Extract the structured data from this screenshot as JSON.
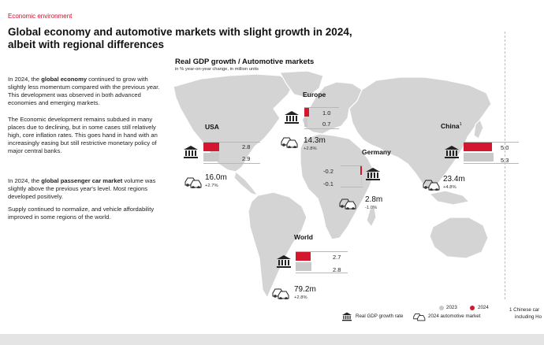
{
  "kicker": "Economic environment",
  "headline": {
    "line1": "Global economy and automotive markets with slight growth in 2024,",
    "line2": "albeit with regional differences"
  },
  "paragraphs": {
    "p1_pre": "In 2024, the ",
    "p1_bold": "global economy",
    "p1_post": " continued to grow with slightly less momentum compared with the previous year. This development was observed in both advanced economies and emerging markets.",
    "p2": "The Economic development remains subdued in many places due to declining, but in some cases still relatively high, core inflation rates. This goes hand in hand with an increasingly easing but still restrictive monetary policy of major central banks.",
    "p3_pre": "In 2024, the ",
    "p3_bold": "global passenger car market",
    "p3_post": " volume was slightly above the previous year's level. Most regions developed positively.",
    "p4": "Supply continued to normalize, and vehicle affordability improved in some regions of the world."
  },
  "map": {
    "title": "Real GDP growth / Automotive markets",
    "subtitle": "in % year-on-year change, in million units"
  },
  "regions": {
    "usa": {
      "name": "USA",
      "gdp_2024": "2.8",
      "gdp_2023": "2.9",
      "market_volume": "16.0m",
      "market_change": "+2.7%"
    },
    "europe": {
      "name": "Europe",
      "gdp_2024": "1.0",
      "gdp_2023": "0.7",
      "market_volume": "14.3m",
      "market_change": "+2.8%"
    },
    "germany": {
      "name": "Germany",
      "gdp_2024": "-0.2",
      "gdp_2023": "-0.1",
      "market_volume": "2.8m",
      "market_change": "-1.0%"
    },
    "china": {
      "name": "China",
      "footnote_mark": "1",
      "gdp_2024": "5.0",
      "gdp_2023": "5.3",
      "market_volume": "23.4m",
      "market_change": "+4.8%"
    },
    "world": {
      "name": "World",
      "gdp_2024": "2.7",
      "gdp_2023": "2.8",
      "market_volume": "79.2m",
      "market_change": "+2.8%"
    }
  },
  "legend": {
    "year_a": "2023",
    "year_b": "2024",
    "gdp_label": "Real GDP growth rate",
    "market_label": "2024 automotive market",
    "color_2023": "#c9c9c9",
    "color_2024": "#d3172e"
  },
  "footnote": {
    "line1": "1 Chinese car",
    "line2": "including Ho"
  },
  "icons": {
    "gdp": "bank-building-icon",
    "market": "cars-icon"
  }
}
